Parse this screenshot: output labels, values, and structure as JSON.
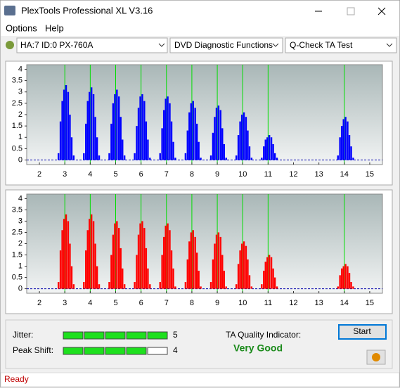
{
  "window": {
    "title": "PlexTools Professional XL V3.16",
    "status": "Ready"
  },
  "menu": [
    "Options",
    "Help"
  ],
  "toolbar": {
    "drive": "HA:7 ID:0  PX-760A",
    "function": "DVD Diagnostic Functions",
    "test": "Q-Check TA Test"
  },
  "chart_data": [
    {
      "type": "bar",
      "color": "#0000ff",
      "marker_color": "#00dd00",
      "xlim": [
        1.5,
        15.5
      ],
      "ylim": [
        -0.2,
        4.2
      ],
      "xticks": [
        2,
        3,
        4,
        5,
        6,
        7,
        8,
        9,
        10,
        11,
        12,
        13,
        14,
        15
      ],
      "yticks": [
        0,
        0.5,
        1,
        1.5,
        2,
        2.5,
        3,
        3.5,
        4
      ],
      "markers": [
        3,
        4,
        5,
        6,
        7,
        8,
        9,
        10,
        11,
        14
      ],
      "x": [
        2.75,
        2.83,
        2.9,
        2.97,
        3.05,
        3.13,
        3.2,
        3.27,
        3.35,
        3.75,
        3.83,
        3.9,
        3.97,
        4.05,
        4.13,
        4.2,
        4.27,
        4.35,
        4.75,
        4.83,
        4.9,
        4.97,
        5.05,
        5.13,
        5.2,
        5.27,
        5.35,
        5.75,
        5.83,
        5.9,
        5.97,
        6.05,
        6.13,
        6.2,
        6.27,
        6.35,
        6.75,
        6.83,
        6.9,
        6.97,
        7.05,
        7.13,
        7.2,
        7.27,
        7.35,
        7.75,
        7.83,
        7.9,
        7.97,
        8.05,
        8.13,
        8.2,
        8.27,
        8.35,
        8.75,
        8.83,
        8.9,
        8.97,
        9.05,
        9.13,
        9.2,
        9.27,
        9.35,
        9.75,
        9.83,
        9.9,
        9.97,
        10.05,
        10.13,
        10.2,
        10.27,
        10.35,
        10.75,
        10.83,
        10.9,
        10.97,
        11.05,
        11.13,
        11.2,
        11.27,
        11.35,
        13.75,
        13.83,
        13.9,
        13.97,
        14.05,
        14.13,
        14.2,
        14.27,
        14.35
      ],
      "values": [
        0.3,
        1.7,
        2.6,
        3.1,
        3.3,
        3.0,
        2.0,
        1.0,
        0.2,
        0.3,
        1.6,
        2.6,
        3.0,
        3.2,
        2.9,
        1.9,
        1.0,
        0.2,
        0.3,
        1.6,
        2.5,
        2.9,
        3.1,
        2.8,
        1.9,
        0.9,
        0.2,
        0.3,
        1.5,
        2.3,
        2.8,
        2.9,
        2.6,
        1.7,
        0.9,
        0.1,
        0.3,
        1.4,
        2.2,
        2.7,
        2.8,
        2.5,
        1.7,
        0.8,
        0.1,
        0.3,
        1.3,
        2.1,
        2.5,
        2.6,
        2.3,
        1.6,
        0.8,
        0.1,
        0.2,
        1.2,
        1.9,
        2.3,
        2.4,
        2.2,
        1.4,
        0.7,
        0.1,
        0.2,
        1.1,
        1.7,
        2.0,
        2.1,
        1.9,
        1.3,
        0.6,
        0.1,
        0.1,
        0.6,
        0.9,
        1.0,
        1.1,
        1.0,
        0.7,
        0.3,
        0.1,
        0.2,
        1.0,
        1.5,
        1.8,
        1.9,
        1.7,
        1.1,
        0.6,
        0.1
      ]
    },
    {
      "type": "bar",
      "color": "#ff0000",
      "marker_color": "#00dd00",
      "xlim": [
        1.5,
        15.5
      ],
      "ylim": [
        -0.2,
        4.2
      ],
      "xticks": [
        2,
        3,
        4,
        5,
        6,
        7,
        8,
        9,
        10,
        11,
        12,
        13,
        14,
        15
      ],
      "yticks": [
        0,
        0.5,
        1,
        1.5,
        2,
        2.5,
        3,
        3.5,
        4
      ],
      "markers": [
        3,
        4,
        5,
        6,
        7,
        8,
        9,
        10,
        11,
        14
      ],
      "x": [
        2.75,
        2.83,
        2.9,
        2.97,
        3.05,
        3.13,
        3.2,
        3.27,
        3.35,
        3.75,
        3.83,
        3.9,
        3.97,
        4.05,
        4.13,
        4.2,
        4.27,
        4.35,
        4.75,
        4.83,
        4.9,
        4.97,
        5.05,
        5.13,
        5.2,
        5.27,
        5.35,
        5.75,
        5.83,
        5.9,
        5.97,
        6.05,
        6.13,
        6.2,
        6.27,
        6.35,
        6.75,
        6.83,
        6.9,
        6.97,
        7.05,
        7.13,
        7.2,
        7.27,
        7.35,
        7.75,
        7.83,
        7.9,
        7.97,
        8.05,
        8.13,
        8.2,
        8.27,
        8.35,
        8.75,
        8.83,
        8.9,
        8.97,
        9.05,
        9.13,
        9.2,
        9.27,
        9.35,
        9.75,
        9.83,
        9.9,
        9.97,
        10.05,
        10.13,
        10.2,
        10.27,
        10.35,
        10.75,
        10.83,
        10.9,
        10.97,
        11.05,
        11.13,
        11.2,
        11.27,
        11.35,
        13.75,
        13.83,
        13.9,
        13.97,
        14.05,
        14.13,
        14.2,
        14.27,
        14.35
      ],
      "values": [
        0.3,
        1.7,
        2.6,
        3.1,
        3.3,
        3.0,
        2.0,
        1.0,
        0.2,
        0.3,
        1.7,
        2.6,
        3.1,
        3.3,
        3.0,
        2.0,
        1.0,
        0.2,
        0.3,
        1.5,
        2.4,
        2.9,
        3.0,
        2.7,
        1.8,
        0.9,
        0.2,
        0.3,
        1.5,
        2.4,
        2.9,
        3.0,
        2.7,
        1.8,
        0.9,
        0.2,
        0.3,
        1.5,
        2.3,
        2.8,
        2.9,
        2.6,
        1.7,
        0.9,
        0.1,
        0.3,
        1.3,
        2.1,
        2.5,
        2.6,
        2.3,
        1.6,
        0.8,
        0.1,
        0.3,
        1.3,
        2.0,
        2.4,
        2.5,
        2.3,
        1.5,
        0.8,
        0.1,
        0.2,
        1.1,
        1.7,
        2.0,
        2.1,
        1.9,
        1.3,
        0.6,
        0.1,
        0.2,
        0.8,
        1.2,
        1.4,
        1.5,
        1.4,
        0.9,
        0.5,
        0.1,
        0.1,
        0.6,
        0.9,
        1.0,
        1.1,
        1.0,
        0.7,
        0.3,
        0.1
      ]
    }
  ],
  "results": {
    "jitter": {
      "label": "Jitter:",
      "value": 5
    },
    "peak_shift": {
      "label": "Peak Shift:",
      "value": 4
    },
    "ta_label": "TA Quality Indicator:",
    "ta_value": "Very Good",
    "start": "Start"
  }
}
